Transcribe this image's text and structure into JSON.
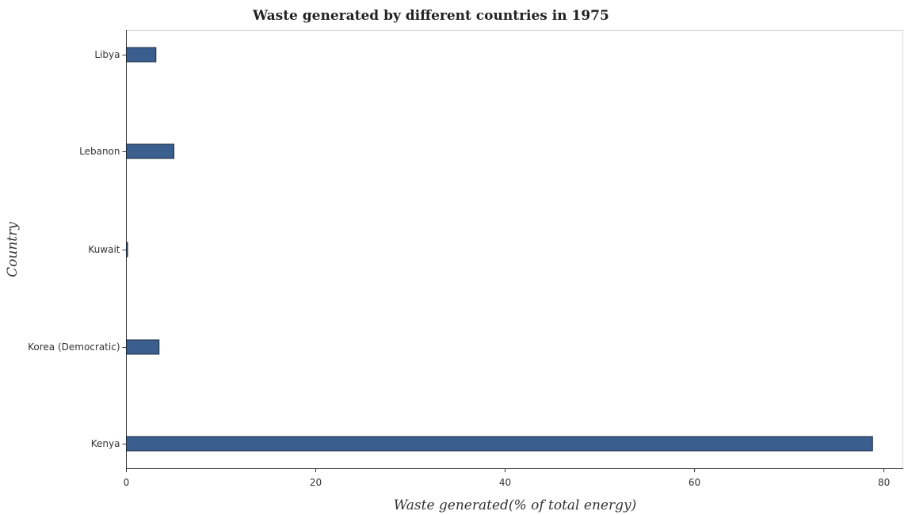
{
  "chart_data": {
    "type": "bar",
    "orientation": "horizontal",
    "title": "Waste generated by different countries in 1975",
    "xlabel": "Waste generated(% of total energy)",
    "ylabel": "Country",
    "categories": [
      "Kenya",
      "Korea (Democratic)",
      "Kuwait",
      "Lebanon",
      "Libya"
    ],
    "values": [
      78.8,
      3.45,
      0.13,
      5.02,
      3.12
    ],
    "xlim": [
      0,
      82
    ],
    "xticks": [
      0,
      20,
      40,
      60,
      80
    ],
    "xtick_labels": [
      "0",
      "20",
      "40",
      "60",
      "80"
    ],
    "grid": false,
    "bar_color": "#3a5f8f"
  }
}
